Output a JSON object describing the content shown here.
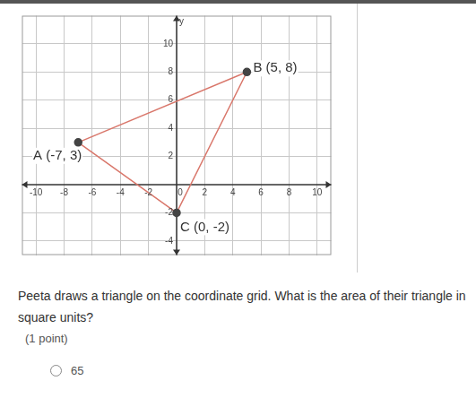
{
  "chart_data": {
    "type": "scatter",
    "x": [
      -7,
      5,
      0
    ],
    "values": [
      3,
      8,
      -2
    ],
    "point_labels": [
      "A (-7, 3)",
      "B (5, 8)",
      "C (0, -2)"
    ],
    "color": "#d9776b",
    "marker": "circle",
    "line_style": "solid",
    "ylabel": "y",
    "xlim": [
      -11,
      11
    ],
    "xticks": [
      -10,
      -8,
      -6,
      -4,
      -2,
      0,
      2,
      4,
      6,
      8,
      10
    ],
    "ylim": [
      -5,
      12
    ],
    "yticks": [
      -4,
      -2,
      2,
      4,
      6,
      8,
      10
    ],
    "grid": true
  },
  "question": "Peeta draws a triangle on the coordinate grid. What is the area of their triangle in square units?",
  "points_note": "(1 point)",
  "options": [
    "65"
  ]
}
